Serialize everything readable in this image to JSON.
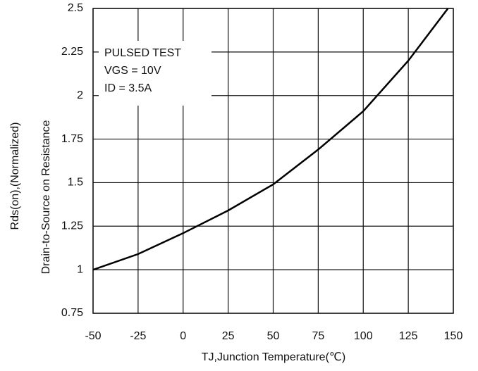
{
  "chart_data": {
    "type": "line",
    "y_label_lines": [
      "Rds(on),(Normalized)",
      "Drain-to-Source on Resistance"
    ],
    "x_label": "TJ,Junction Temperature(℃)",
    "annotations": [
      "PULSED TEST",
      "VGS = 10V",
      "ID = 3.5A"
    ],
    "x": [
      -50,
      -25,
      0,
      25,
      50,
      75,
      100,
      125,
      147
    ],
    "series": [
      {
        "color": "#000000",
        "values": [
          1.0,
          1.09,
          1.21,
          1.34,
          1.49,
          1.69,
          1.91,
          2.2,
          2.5
        ]
      }
    ],
    "xlim": [
      -50,
      150
    ],
    "xticks": [
      -50,
      -25,
      0,
      25,
      50,
      75,
      100,
      125,
      150
    ],
    "ylim": [
      0.75,
      2.5
    ],
    "yticks": [
      0.75,
      1,
      1.25,
      1.5,
      1.75,
      2,
      2.25,
      2.5
    ],
    "grid": true
  }
}
